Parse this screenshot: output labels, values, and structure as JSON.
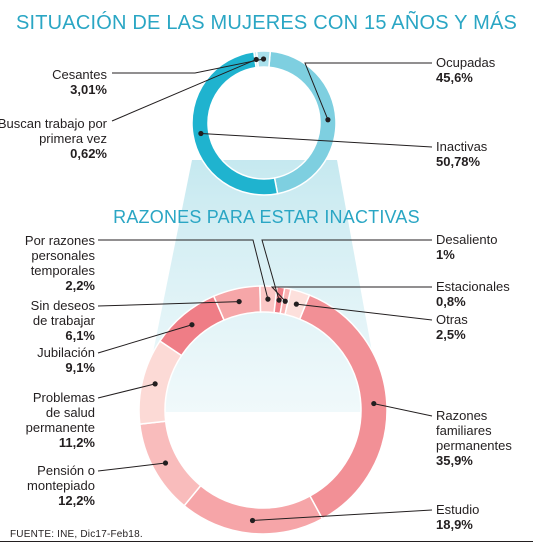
{
  "chart_data": [
    {
      "type": "pie",
      "title": "SITUACIÓN DE LAS MUJERES CON 15 AÑOS Y MÁS",
      "slices": [
        {
          "label": "Ocupadas",
          "value": 45.6,
          "value_text": "45,6%",
          "color": "#7ecfe0"
        },
        {
          "label": "Inactivas",
          "value": 50.78,
          "value_text": "50,78%",
          "color": "#1fb3cf"
        },
        {
          "label": "Buscan trabajo por primera vez",
          "value": 0.62,
          "value_text": "0,62%",
          "color": "#cdeef5"
        },
        {
          "label": "Cesantes",
          "value": 3.01,
          "value_text": "3,01%",
          "color": "#a9e0ec"
        }
      ]
    },
    {
      "type": "pie",
      "title": "RAZONES PARA ESTAR INACTIVAS",
      "slices": [
        {
          "label": "Razones familiares permanentes",
          "value": 35.9,
          "value_text": "35,9%",
          "color": "#f29096"
        },
        {
          "label": "Estudio",
          "value": 18.9,
          "value_text": "18,9%",
          "color": "#f6a5a8"
        },
        {
          "label": "Pensión o montepiado",
          "value": 12.2,
          "value_text": "12,2%",
          "color": "#f9bcbc"
        },
        {
          "label": "Problemas de salud permanente",
          "value": 11.2,
          "value_text": "11,2%",
          "color": "#fcdad6"
        },
        {
          "label": "Jubilación",
          "value": 9.1,
          "value_text": "9,1%",
          "color": "#ef7d86"
        },
        {
          "label": "Sin deseos de trabajar",
          "value": 6.1,
          "value_text": "6,1%",
          "color": "#f6a6a8"
        },
        {
          "label": "Por razones personales temporales",
          "value": 2.2,
          "value_text": "2,2%",
          "color": "#fbc7c6"
        },
        {
          "label": "Desaliento",
          "value": 1,
          "value_text": "1%",
          "color": "#f07f88"
        },
        {
          "label": "Estacionales",
          "value": 0.8,
          "value_text": "0,8%",
          "color": "#f9b3b3"
        },
        {
          "label": "Otras",
          "value": 2.5,
          "value_text": "2,5%",
          "color": "#fde0dc"
        }
      ]
    }
  ],
  "source": "FUENTE: INE, Dic17-Feb18."
}
